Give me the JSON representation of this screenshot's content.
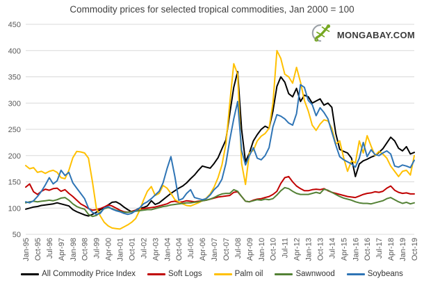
{
  "title": "Commodity prices for selected tropical commodities, Jan 2000 = 100",
  "logo": {
    "icon": "gecko-icon",
    "text": "MONGABAY.COM",
    "icon_color": "#76A821",
    "swoosh_color": "#9aa0a6",
    "text_color": "#3a3a3a"
  },
  "colors": {
    "grid": "#d9d9d9",
    "axis_text": "#595959",
    "title_text": "#404040"
  },
  "chart_data": {
    "type": "line",
    "title": "Commodity prices for selected tropical commodities, Jan 2000 = 100",
    "xlabel": "",
    "ylabel": "",
    "ylim": [
      50,
      450
    ],
    "y_ticks": [
      450,
      400,
      350,
      300,
      250,
      200,
      150,
      100,
      50
    ],
    "grid": true,
    "legend_position": "bottom",
    "x_start": "Jan-95",
    "x_end": "Oct-19",
    "sampling": "quarterly",
    "x_tick_labels": [
      "Jan-95",
      "Oct-95",
      "Jul-96",
      "Apr-97",
      "Jan-98",
      "Oct-98",
      "Jul-99",
      "Apr-00",
      "Jan-01",
      "Oct-01",
      "Jul-02",
      "Apr-03",
      "Jan-04",
      "Oct-04",
      "Jul-05",
      "Apr-06",
      "Jan-07",
      "Oct-07",
      "Jul-08",
      "Apr-09",
      "Jan-10",
      "Oct-10",
      "Jul-11",
      "Apr-12",
      "Jan-13",
      "Oct-13",
      "Jul-14",
      "Apr-15",
      "Jan-16",
      "Oct-16",
      "Jul-17",
      "Apr-18",
      "Jan-19",
      "Oct-19"
    ],
    "x_ticks_every_n_points": 3,
    "series": [
      {
        "name": "All Commodity Price Index",
        "color": "#000000",
        "values": [
          98,
          100,
          102,
          103,
          105,
          106,
          107,
          108,
          110,
          108,
          106,
          104,
          97,
          93,
          90,
          87,
          85,
          88,
          92,
          97,
          101,
          106,
          111,
          112,
          108,
          102,
          97,
          93,
          96,
          100,
          101,
          104,
          114,
          107,
          110,
          116,
          122,
          128,
          133,
          138,
          142,
          148,
          156,
          163,
          172,
          180,
          178,
          176,
          185,
          196,
          213,
          230,
          280,
          330,
          360,
          250,
          188,
          205,
          228,
          240,
          250,
          256,
          252,
          285,
          332,
          350,
          340,
          318,
          312,
          328,
          303,
          315,
          312,
          300,
          304,
          308,
          296,
          300,
          292,
          242,
          212,
          208,
          205,
          195,
          160,
          184,
          190,
          193,
          197,
          200,
          206,
          213,
          224,
          235,
          228,
          214,
          209,
          217,
          203,
          206
        ]
      },
      {
        "name": "Soft Logs",
        "color": "#c00000",
        "values": [
          140,
          146,
          131,
          126,
          132,
          136,
          134,
          137,
          138,
          132,
          135,
          128,
          122,
          115,
          108,
          104,
          99,
          96,
          97,
          99,
          102,
          106,
          104,
          100,
          96,
          93,
          92,
          94,
          96,
          98,
          99,
          100,
          101,
          102,
          104,
          106,
          108,
          112,
          113,
          111,
          112,
          114,
          113,
          112,
          113,
          114,
          115,
          117,
          119,
          121,
          122,
          123,
          124,
          130,
          131,
          122,
          113,
          112,
          115,
          117,
          118,
          120,
          122,
          126,
          132,
          147,
          158,
          160,
          150,
          142,
          137,
          133,
          133,
          135,
          136,
          135,
          137,
          133,
          130,
          128,
          126,
          124,
          122,
          121,
          120,
          123,
          126,
          128,
          129,
          131,
          130,
          132,
          138,
          142,
          134,
          130,
          128,
          129,
          127,
          127
        ]
      },
      {
        "name": "Palm oil",
        "color": "#ffc000",
        "values": [
          181,
          175,
          177,
          168,
          170,
          166,
          170,
          172,
          168,
          158,
          156,
          172,
          196,
          208,
          207,
          205,
          195,
          150,
          100,
          85,
          73,
          66,
          62,
          61,
          60,
          64,
          68,
          73,
          80,
          95,
          115,
          132,
          141,
          124,
          128,
          143,
          138,
          128,
          116,
          112,
          108,
          105,
          104,
          107,
          110,
          114,
          119,
          127,
          140,
          158,
          182,
          222,
          300,
          375,
          355,
          185,
          145,
          205,
          210,
          228,
          237,
          242,
          252,
          300,
          400,
          385,
          355,
          350,
          338,
          368,
          340,
          305,
          285,
          258,
          248,
          260,
          268,
          266,
          252,
          222,
          228,
          196,
          170,
          190,
          186,
          228,
          205,
          238,
          218,
          200,
          208,
          203,
          195,
          180,
          170,
          160,
          170,
          172,
          163,
          200
        ]
      },
      {
        "name": "Sawnwood",
        "color": "#538135",
        "values": [
          110,
          112,
          113,
          112,
          113,
          114,
          115,
          114,
          116,
          119,
          120,
          115,
          108,
          103,
          100,
          98,
          88,
          84,
          86,
          92,
          99,
          101,
          99,
          96,
          94,
          92,
          92,
          93,
          94,
          95,
          96,
          97,
          97,
          99,
          101,
          103,
          104,
          106,
          107,
          108,
          109,
          110,
          110,
          111,
          112,
          114,
          115,
          117,
          120,
          124,
          127,
          128,
          128,
          135,
          132,
          122,
          113,
          112,
          114,
          116,
          115,
          117,
          116,
          118,
          125,
          133,
          139,
          137,
          132,
          128,
          126,
          126,
          126,
          128,
          130,
          128,
          136,
          134,
          130,
          126,
          122,
          119,
          117,
          115,
          112,
          110,
          109,
          109,
          108,
          110,
          112,
          114,
          118,
          120,
          116,
          112,
          109,
          111,
          108,
          110
        ]
      },
      {
        "name": "Soybeans",
        "color": "#2e74b5",
        "values": [
          112,
          110,
          114,
          122,
          132,
          144,
          158,
          146,
          152,
          172,
          162,
          168,
          148,
          138,
          128,
          118,
          100,
          92,
          88,
          90,
          100,
          103,
          98,
          95,
          93,
          90,
          88,
          90,
          95,
          100,
          108,
          112,
          118,
          125,
          132,
          148,
          175,
          198,
          160,
          115,
          118,
          128,
          135,
          120,
          118,
          116,
          118,
          125,
          135,
          142,
          155,
          185,
          230,
          270,
          303,
          210,
          182,
          200,
          215,
          195,
          192,
          200,
          215,
          255,
          278,
          275,
          270,
          262,
          258,
          280,
          335,
          330,
          305,
          297,
          276,
          291,
          282,
          270,
          245,
          220,
          198,
          192,
          188,
          184,
          178,
          195,
          225,
          198,
          211,
          202,
          200,
          205,
          209,
          203,
          180,
          178,
          182,
          180,
          177,
          191
        ]
      }
    ]
  }
}
